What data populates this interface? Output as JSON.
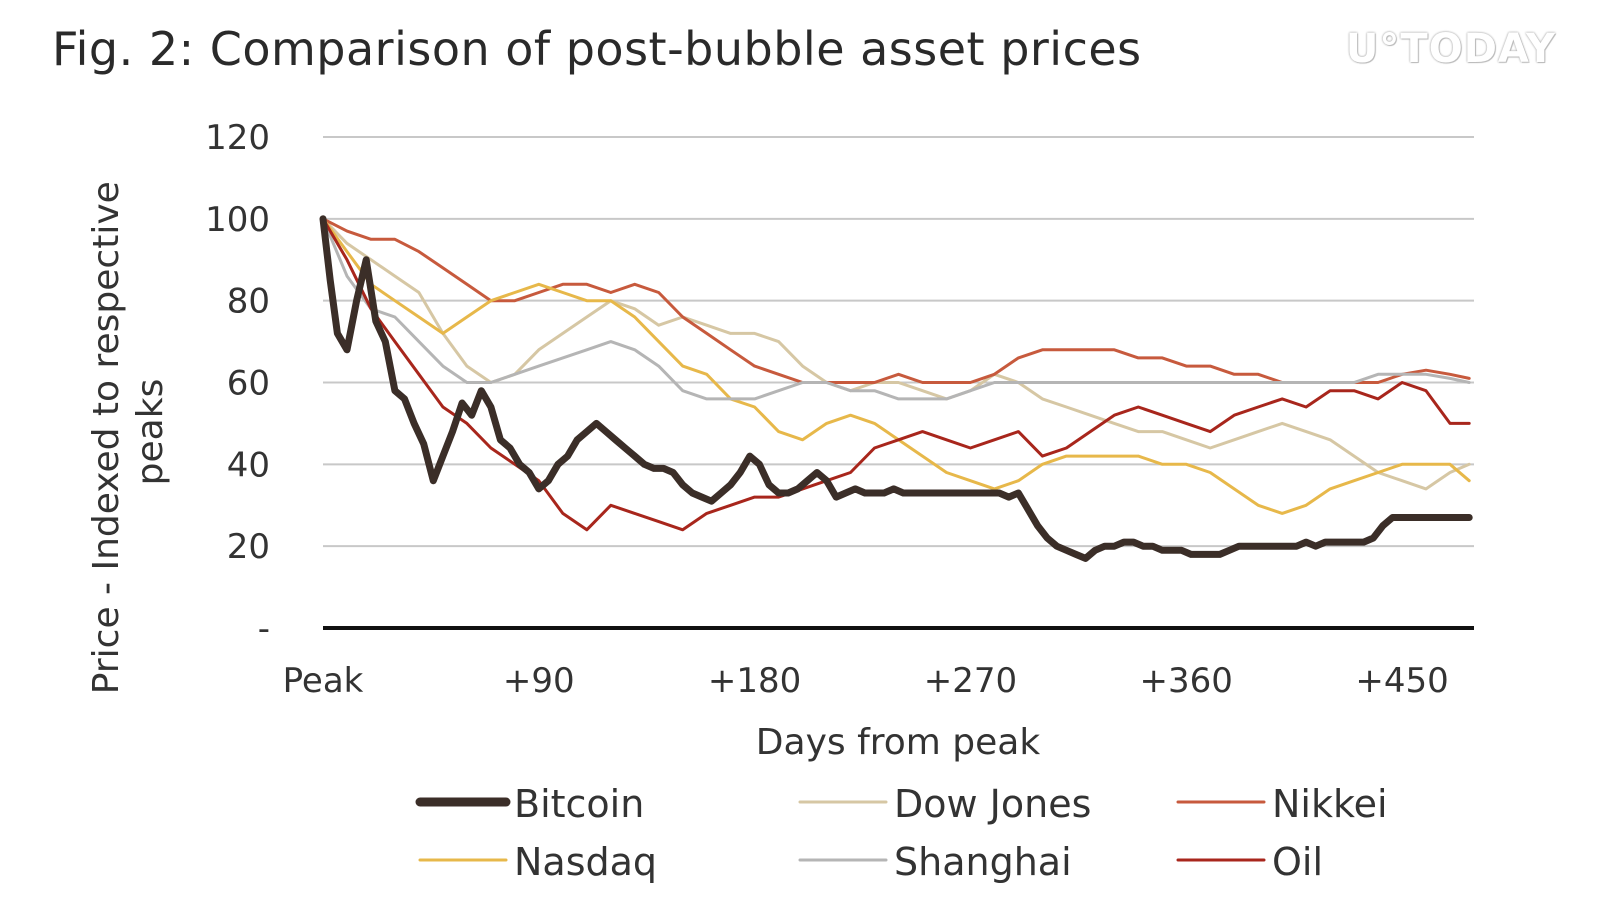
{
  "chart_data": {
    "type": "line",
    "title": "Fig. 2: Comparison of post-bubble asset prices",
    "watermark": "U°TODAY",
    "xlabel": "Days from peak",
    "ylabel": "Price - Indexed to respective peaks",
    "ylim": [
      0,
      120
    ],
    "xlim": [
      0,
      480
    ],
    "y_ticks": [
      {
        "value": 0,
        "label": "-"
      },
      {
        "value": 20,
        "label": "20"
      },
      {
        "value": 40,
        "label": "40"
      },
      {
        "value": 60,
        "label": "60"
      },
      {
        "value": 80,
        "label": "80"
      },
      {
        "value": 100,
        "label": "100"
      },
      {
        "value": 120,
        "label": "120"
      }
    ],
    "x_ticks": [
      {
        "value": 0,
        "label": "Peak"
      },
      {
        "value": 90,
        "label": "+90"
      },
      {
        "value": 180,
        "label": "+180"
      },
      {
        "value": 270,
        "label": "+270"
      },
      {
        "value": 360,
        "label": "+360"
      },
      {
        "value": 450,
        "label": "+450"
      }
    ],
    "grid": true,
    "legend_position": "bottom",
    "series": [
      {
        "name": "Bitcoin",
        "color": "#3b2e28",
        "width": 7,
        "x": [
          0,
          3,
          6,
          10,
          14,
          18,
          22,
          26,
          30,
          34,
          38,
          42,
          46,
          50,
          54,
          58,
          62,
          66,
          70,
          74,
          78,
          82,
          86,
          90,
          94,
          98,
          102,
          106,
          110,
          114,
          118,
          122,
          126,
          130,
          134,
          138,
          142,
          146,
          150,
          154,
          158,
          162,
          166,
          170,
          174,
          178,
          182,
          186,
          190,
          194,
          198,
          202,
          206,
          210,
          214,
          218,
          222,
          226,
          230,
          234,
          238,
          242,
          246,
          250,
          254,
          258,
          262,
          266,
          270,
          274,
          278,
          282,
          286,
          290,
          294,
          298,
          302,
          306,
          310,
          314,
          318,
          322,
          326,
          330,
          334,
          338,
          342,
          346,
          350,
          354,
          358,
          362,
          366,
          370,
          374,
          378,
          382,
          386,
          390,
          394,
          398,
          402,
          406,
          410,
          414,
          418,
          422,
          426,
          430,
          434,
          438,
          442,
          446,
          450,
          454,
          458,
          462,
          466,
          470,
          474,
          478
        ],
        "y": [
          100,
          85,
          72,
          68,
          80,
          90,
          75,
          70,
          58,
          56,
          50,
          45,
          36,
          42,
          48,
          55,
          52,
          58,
          54,
          46,
          44,
          40,
          38,
          34,
          36,
          40,
          42,
          46,
          48,
          50,
          48,
          46,
          44,
          42,
          40,
          39,
          39,
          38,
          35,
          33,
          32,
          31,
          33,
          35,
          38,
          42,
          40,
          35,
          33,
          33,
          34,
          36,
          38,
          36,
          32,
          33,
          34,
          33,
          33,
          33,
          34,
          33,
          33,
          33,
          33,
          33,
          33,
          33,
          33,
          33,
          33,
          33,
          32,
          33,
          29,
          25,
          22,
          20,
          19,
          18,
          17,
          19,
          20,
          20,
          21,
          21,
          20,
          20,
          19,
          19,
          19,
          18,
          18,
          18,
          18,
          19,
          20,
          20,
          20,
          20,
          20,
          20,
          20,
          21,
          20,
          21,
          21,
          21,
          21,
          21,
          22,
          25,
          27,
          27,
          27,
          27,
          27,
          27,
          27,
          27,
          27
        ]
      },
      {
        "name": "Dow Jones",
        "color": "#d6c7a4",
        "width": 3,
        "x": [
          0,
          10,
          20,
          30,
          40,
          50,
          60,
          70,
          80,
          90,
          100,
          110,
          120,
          130,
          140,
          150,
          160,
          170,
          180,
          190,
          200,
          210,
          220,
          230,
          240,
          250,
          260,
          270,
          280,
          290,
          300,
          310,
          320,
          330,
          340,
          350,
          360,
          370,
          380,
          390,
          400,
          410,
          420,
          430,
          440,
          450,
          460,
          470,
          478
        ],
        "y": [
          100,
          94,
          90,
          86,
          82,
          72,
          64,
          60,
          62,
          68,
          72,
          76,
          80,
          78,
          74,
          76,
          74,
          72,
          72,
          70,
          64,
          60,
          58,
          60,
          60,
          58,
          56,
          58,
          62,
          60,
          56,
          54,
          52,
          50,
          48,
          48,
          46,
          44,
          46,
          48,
          50,
          48,
          46,
          42,
          38,
          36,
          34,
          38,
          40
        ]
      },
      {
        "name": "Nikkei",
        "color": "#c75a3d",
        "width": 3,
        "x": [
          0,
          10,
          20,
          30,
          40,
          50,
          60,
          70,
          80,
          90,
          100,
          110,
          120,
          130,
          140,
          150,
          160,
          170,
          180,
          190,
          200,
          210,
          220,
          230,
          240,
          250,
          260,
          270,
          280,
          290,
          300,
          310,
          320,
          330,
          340,
          350,
          360,
          370,
          380,
          390,
          400,
          410,
          420,
          430,
          440,
          450,
          460,
          470,
          478
        ],
        "y": [
          100,
          97,
          95,
          95,
          92,
          88,
          84,
          80,
          80,
          82,
          84,
          84,
          82,
          84,
          82,
          76,
          72,
          68,
          64,
          62,
          60,
          60,
          60,
          60,
          62,
          60,
          60,
          60,
          62,
          66,
          68,
          68,
          68,
          68,
          66,
          66,
          64,
          64,
          62,
          62,
          60,
          60,
          60,
          60,
          60,
          62,
          63,
          62,
          61
        ]
      },
      {
        "name": "Nasdaq",
        "color": "#e7b84a",
        "width": 3,
        "x": [
          0,
          10,
          20,
          30,
          40,
          50,
          60,
          70,
          80,
          90,
          100,
          110,
          120,
          130,
          140,
          150,
          160,
          170,
          180,
          190,
          200,
          210,
          220,
          230,
          240,
          250,
          260,
          270,
          280,
          290,
          300,
          310,
          320,
          330,
          340,
          350,
          360,
          370,
          380,
          390,
          400,
          410,
          420,
          430,
          440,
          450,
          460,
          470,
          478
        ],
        "y": [
          100,
          92,
          84,
          80,
          76,
          72,
          76,
          80,
          82,
          84,
          82,
          80,
          80,
          76,
          70,
          64,
          62,
          56,
          54,
          48,
          46,
          50,
          52,
          50,
          46,
          42,
          38,
          36,
          34,
          36,
          40,
          42,
          42,
          42,
          42,
          40,
          40,
          38,
          34,
          30,
          28,
          30,
          34,
          36,
          38,
          40,
          40,
          40,
          36
        ]
      },
      {
        "name": "Shanghai",
        "color": "#b5b5b5",
        "width": 3,
        "x": [
          0,
          10,
          20,
          30,
          40,
          50,
          60,
          70,
          80,
          90,
          100,
          110,
          120,
          130,
          140,
          150,
          160,
          170,
          180,
          190,
          200,
          210,
          220,
          230,
          240,
          250,
          260,
          270,
          280,
          290,
          300,
          310,
          320,
          330,
          340,
          350,
          360,
          370,
          380,
          390,
          400,
          410,
          420,
          430,
          440,
          450,
          460,
          470,
          478
        ],
        "y": [
          100,
          86,
          78,
          76,
          70,
          64,
          60,
          60,
          62,
          64,
          66,
          68,
          70,
          68,
          64,
          58,
          56,
          56,
          56,
          58,
          60,
          60,
          58,
          58,
          56,
          56,
          56,
          58,
          60,
          60,
          60,
          60,
          60,
          60,
          60,
          60,
          60,
          60,
          60,
          60,
          60,
          60,
          60,
          60,
          62,
          62,
          62,
          61,
          60
        ]
      },
      {
        "name": "Oil",
        "color": "#a8261c",
        "width": 3,
        "x": [
          0,
          10,
          20,
          30,
          40,
          50,
          60,
          70,
          80,
          90,
          100,
          110,
          120,
          130,
          140,
          150,
          160,
          170,
          180,
          190,
          200,
          210,
          220,
          230,
          240,
          250,
          260,
          270,
          280,
          290,
          300,
          310,
          320,
          330,
          340,
          350,
          360,
          370,
          380,
          390,
          400,
          410,
          420,
          430,
          440,
          450,
          460,
          470,
          478
        ],
        "y": [
          100,
          90,
          78,
          70,
          62,
          54,
          50,
          44,
          40,
          36,
          28,
          24,
          30,
          28,
          26,
          24,
          28,
          30,
          32,
          32,
          34,
          36,
          38,
          44,
          46,
          48,
          46,
          44,
          46,
          48,
          42,
          44,
          48,
          52,
          54,
          52,
          50,
          48,
          52,
          54,
          56,
          54,
          58,
          58,
          56,
          60,
          58,
          50,
          50
        ]
      }
    ]
  }
}
